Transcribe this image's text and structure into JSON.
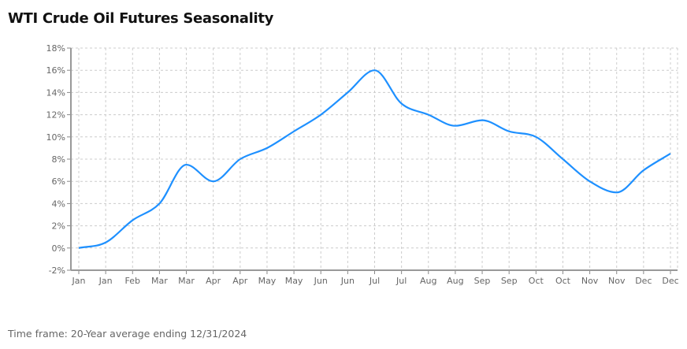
{
  "title": "WTI Crude Oil Futures Seasonality",
  "footer": "Time frame: 20-Year average ending 12/31/2024",
  "chart_data": {
    "type": "line",
    "title": "WTI Crude Oil Futures Seasonality",
    "xlabel": "",
    "ylabel": "",
    "categories": [
      "Jan",
      "Jan",
      "Feb",
      "Mar",
      "Mar",
      "Apr",
      "Apr",
      "May",
      "May",
      "Jun",
      "Jun",
      "Jul",
      "Jul",
      "Aug",
      "Aug",
      "Sep",
      "Sep",
      "Oct",
      "Oct",
      "Nov",
      "Nov",
      "Dec",
      "Dec"
    ],
    "values": [
      0,
      0.5,
      2.5,
      4,
      7.5,
      6,
      8,
      9,
      10.5,
      12,
      14,
      16,
      13,
      12,
      11,
      11.5,
      10.5,
      10,
      8,
      6,
      5,
      7,
      8.5
    ],
    "ylim": [
      -2,
      18
    ],
    "yticks": [
      "-2%",
      "0%",
      "2%",
      "4%",
      "6%",
      "8%",
      "10%",
      "12%",
      "14%",
      "16%",
      "18%"
    ],
    "grid": true,
    "line_color": "#1e90ff"
  }
}
